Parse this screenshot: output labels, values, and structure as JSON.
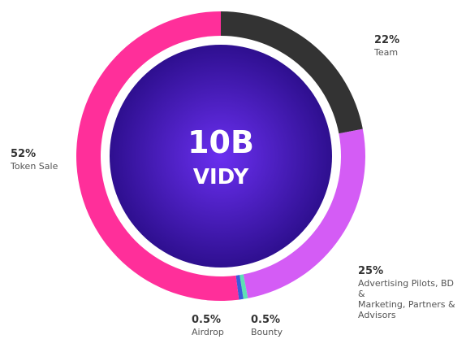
{
  "chart_data": {
    "type": "pie",
    "center_label": {
      "line1": "10B",
      "line2": "VIDY"
    },
    "slices": [
      {
        "name": "Team",
        "value": 22,
        "value_label": "22%",
        "color": "#333333"
      },
      {
        "name": "Advertising Pilots, BD &\nMarketing, Partners &\nAdvisors",
        "value": 25,
        "value_label": "25%",
        "color": "#d45cf5"
      },
      {
        "name": "Bounty",
        "value": 0.5,
        "value_label": "0.5%",
        "color": "#5de0b5"
      },
      {
        "name": "Airdrop",
        "value": 0.5,
        "value_label": "0.5%",
        "color": "#3b5bdb"
      },
      {
        "name": "Token Sale",
        "value": 52,
        "value_label": "52%",
        "color": "#ff2f9a"
      }
    ],
    "colors": {
      "center_gradient_inner": "#6a2ff0",
      "center_gradient_outer": "#2e0f8f"
    }
  }
}
